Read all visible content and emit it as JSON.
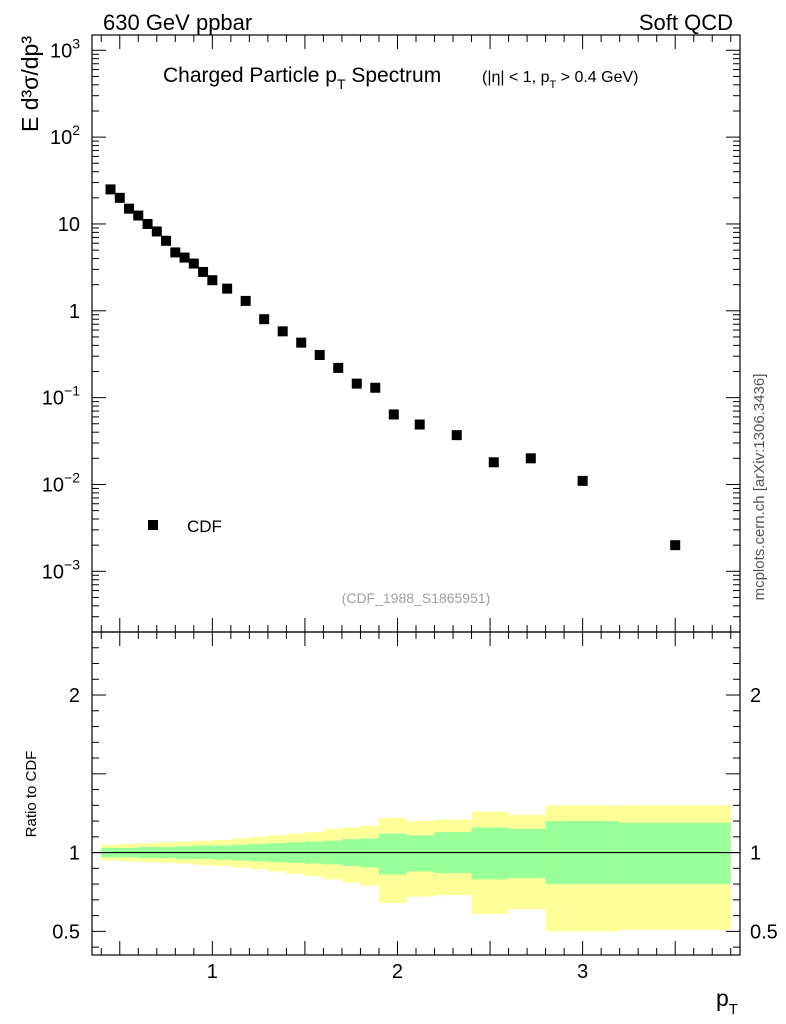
{
  "header": {
    "left": "630 GeV ppbar",
    "right": "Soft QCD"
  },
  "side_label": "mcplots.cern.ch [arXiv:1306.3436]",
  "colors": {
    "data_marker": "#000000",
    "band_outer": "#ffff99",
    "band_inner": "#99ff99",
    "ref_line": "#000000",
    "tag_text": "#a0a0a0"
  },
  "chart_data": [
    {
      "type": "scatter",
      "panel": "main",
      "title_main": "Charged Particle p",
      "title_sub": "T",
      "title_tail": " Spectrum",
      "cuts_text": "(|η| < 1, p",
      "cuts_sub": "T",
      "cuts_tail": " > 0.4 GeV)",
      "ylabel": "E d³σ/dp³",
      "yscale": "log",
      "ylim": [
        0.0002,
        1500
      ],
      "xlim": [
        0.35,
        3.85
      ],
      "ytick_labels": [
        {
          "value": 0.001,
          "base": "10",
          "exp": "−3"
        },
        {
          "value": 0.01,
          "base": "10",
          "exp": "−2"
        },
        {
          "value": 0.1,
          "base": "10",
          "exp": "−1"
        },
        {
          "value": 1,
          "text": "1"
        },
        {
          "value": 10,
          "text": "10"
        },
        {
          "value": 100,
          "base": "10",
          "exp": "2"
        },
        {
          "value": 1000,
          "base": "10",
          "exp": "3"
        }
      ],
      "legend": {
        "label": "CDF",
        "position": "bottom-left"
      },
      "tag": "(CDF_1988_S1865951)",
      "series": [
        {
          "name": "CDF",
          "x": [
            0.45,
            0.5,
            0.55,
            0.6,
            0.65,
            0.7,
            0.75,
            0.8,
            0.85,
            0.9,
            0.95,
            1.0,
            1.08,
            1.18,
            1.28,
            1.38,
            1.48,
            1.58,
            1.68,
            1.78,
            1.88,
            1.98,
            2.12,
            2.32,
            2.52,
            2.72,
            3.0,
            3.5
          ],
          "y": [
            25,
            20,
            15,
            12.5,
            10,
            8.2,
            6.4,
            4.7,
            4.1,
            3.5,
            2.8,
            2.25,
            1.8,
            1.3,
            0.8,
            0.58,
            0.43,
            0.31,
            0.22,
            0.145,
            0.13,
            0.064,
            0.049,
            0.037,
            0.018,
            0.02,
            0.011,
            0.002
          ]
        }
      ]
    },
    {
      "type": "area",
      "panel": "ratio",
      "ylabel": "Ratio to CDF",
      "xlabel_main": "p",
      "xlabel_sub": "T",
      "ylim": [
        0.35,
        2.4
      ],
      "xlim": [
        0.35,
        3.85
      ],
      "xtick_labels": [
        {
          "value": 1,
          "text": "1"
        },
        {
          "value": 2,
          "text": "2"
        },
        {
          "value": 3,
          "text": "3"
        }
      ],
      "ytick_labels": [
        {
          "value": 0.5,
          "text": "0.5"
        },
        {
          "value": 1,
          "text": "1"
        },
        {
          "value": 2,
          "text": "2"
        }
      ],
      "reference": 1,
      "bins": [
        {
          "lo": 0.4,
          "hi": 0.5,
          "in_lo": 0.97,
          "in_hi": 1.03,
          "out_lo": 0.95,
          "out_hi": 1.05
        },
        {
          "lo": 0.5,
          "hi": 0.6,
          "in_lo": 0.97,
          "in_hi": 1.03,
          "out_lo": 0.945,
          "out_hi": 1.055
        },
        {
          "lo": 0.6,
          "hi": 0.7,
          "in_lo": 0.965,
          "in_hi": 1.035,
          "out_lo": 0.94,
          "out_hi": 1.06
        },
        {
          "lo": 0.7,
          "hi": 0.8,
          "in_lo": 0.965,
          "in_hi": 1.035,
          "out_lo": 0.935,
          "out_hi": 1.065
        },
        {
          "lo": 0.8,
          "hi": 0.9,
          "in_lo": 0.96,
          "in_hi": 1.04,
          "out_lo": 0.93,
          "out_hi": 1.07
        },
        {
          "lo": 0.9,
          "hi": 1.0,
          "in_lo": 0.96,
          "in_hi": 1.045,
          "out_lo": 0.92,
          "out_hi": 1.075
        },
        {
          "lo": 1.0,
          "hi": 1.1,
          "in_lo": 0.955,
          "in_hi": 1.045,
          "out_lo": 0.915,
          "out_hi": 1.08
        },
        {
          "lo": 1.1,
          "hi": 1.2,
          "in_lo": 0.95,
          "in_hi": 1.05,
          "out_lo": 0.905,
          "out_hi": 1.09
        },
        {
          "lo": 1.2,
          "hi": 1.3,
          "in_lo": 0.945,
          "in_hi": 1.055,
          "out_lo": 0.895,
          "out_hi": 1.1
        },
        {
          "lo": 1.3,
          "hi": 1.4,
          "in_lo": 0.94,
          "in_hi": 1.06,
          "out_lo": 0.88,
          "out_hi": 1.11
        },
        {
          "lo": 1.4,
          "hi": 1.5,
          "in_lo": 0.935,
          "in_hi": 1.065,
          "out_lo": 0.865,
          "out_hi": 1.12
        },
        {
          "lo": 1.5,
          "hi": 1.6,
          "in_lo": 0.93,
          "in_hi": 1.07,
          "out_lo": 0.85,
          "out_hi": 1.13
        },
        {
          "lo": 1.6,
          "hi": 1.7,
          "in_lo": 0.925,
          "in_hi": 1.075,
          "out_lo": 0.83,
          "out_hi": 1.15
        },
        {
          "lo": 1.7,
          "hi": 1.8,
          "in_lo": 0.915,
          "in_hi": 1.085,
          "out_lo": 0.81,
          "out_hi": 1.16
        },
        {
          "lo": 1.8,
          "hi": 1.9,
          "in_lo": 0.905,
          "in_hi": 1.09,
          "out_lo": 0.79,
          "out_hi": 1.17
        },
        {
          "lo": 1.9,
          "hi": 2.05,
          "in_lo": 0.86,
          "in_hi": 1.12,
          "out_lo": 0.68,
          "out_hi": 1.22
        },
        {
          "lo": 2.05,
          "hi": 2.2,
          "in_lo": 0.88,
          "in_hi": 1.11,
          "out_lo": 0.72,
          "out_hi": 1.2
        },
        {
          "lo": 2.2,
          "hi": 2.4,
          "in_lo": 0.87,
          "in_hi": 1.13,
          "out_lo": 0.73,
          "out_hi": 1.21
        },
        {
          "lo": 2.4,
          "hi": 2.6,
          "in_lo": 0.83,
          "in_hi": 1.16,
          "out_lo": 0.61,
          "out_hi": 1.26
        },
        {
          "lo": 2.6,
          "hi": 2.8,
          "in_lo": 0.84,
          "in_hi": 1.15,
          "out_lo": 0.64,
          "out_hi": 1.24
        },
        {
          "lo": 2.8,
          "hi": 3.2,
          "in_lo": 0.8,
          "in_hi": 1.2,
          "out_lo": 0.5,
          "out_hi": 1.3
        },
        {
          "lo": 3.2,
          "hi": 3.8,
          "in_lo": 0.8,
          "in_hi": 1.19,
          "out_lo": 0.51,
          "out_hi": 1.3
        }
      ]
    }
  ]
}
